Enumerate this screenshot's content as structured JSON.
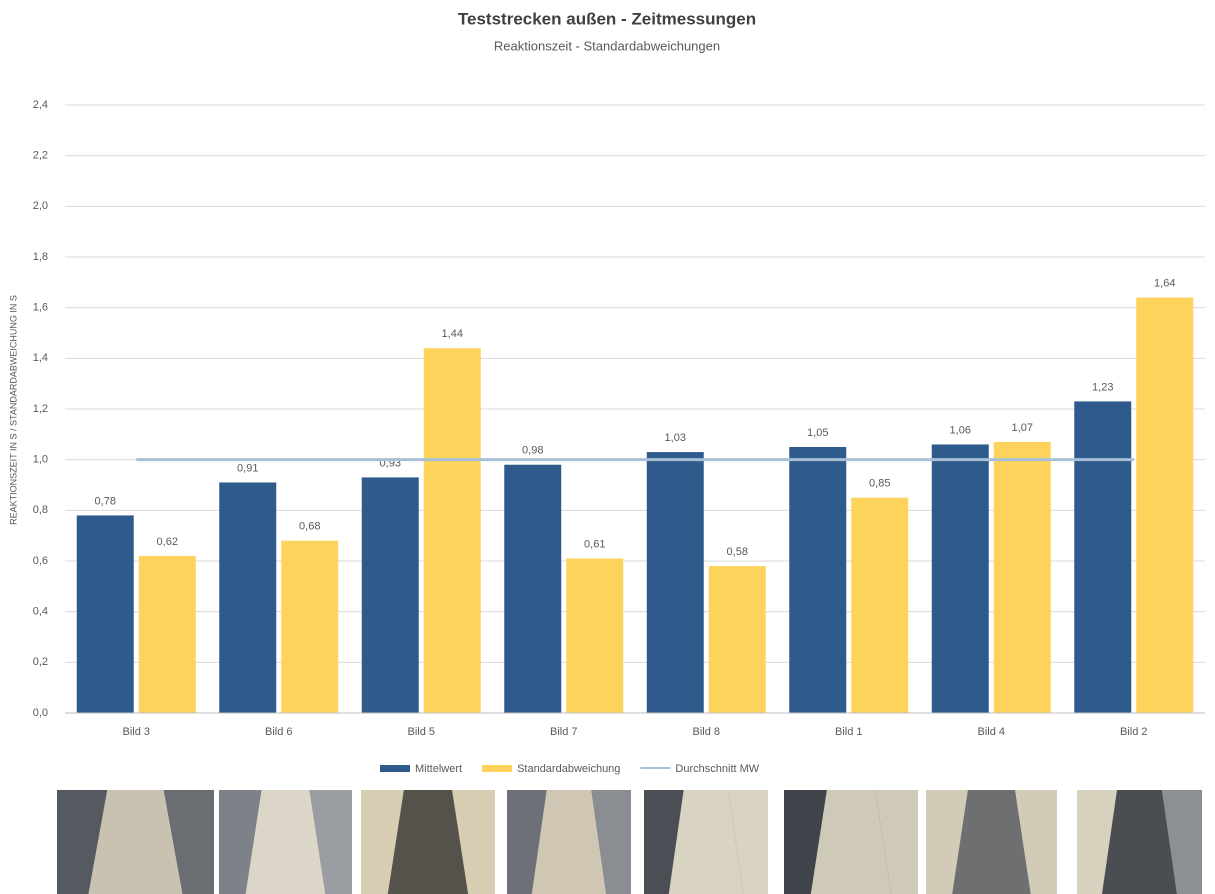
{
  "chart_data": {
    "type": "bar",
    "title": "Teststrecken außen - Zeitmessungen",
    "subtitle": "Reaktionszeit - Standardabweichungen",
    "y_label": "REAKTIONSZEIT IN S / STANDARDABWEICHUNG IN S",
    "categories": [
      "Bild 3",
      "Bild 6",
      "Bild 5",
      "Bild 7",
      "Bild 8",
      "Bild 1",
      "Bild 4",
      "Bild 2"
    ],
    "series": [
      {
        "name": "Mittelwert",
        "color": "#2e5b8c",
        "values": [
          0.78,
          0.91,
          0.93,
          0.98,
          1.03,
          1.05,
          1.06,
          1.23
        ],
        "value_labels": [
          "0,78",
          "0,91",
          "0,93",
          "0,98",
          "1,03",
          "1,05",
          "1,06",
          "1,23"
        ]
      },
      {
        "name": "Standardabweichung",
        "color": "#fdd35c",
        "values": [
          0.62,
          0.68,
          1.44,
          0.61,
          0.58,
          0.85,
          1.07,
          1.64
        ],
        "value_labels": [
          "0,62",
          "0,68",
          "1,44",
          "0,61",
          "0,58",
          "0,85",
          "1,07",
          "1,64"
        ]
      },
      {
        "name": "Durchschnitt MW",
        "type": "line",
        "color": "#a9bfd6",
        "values": [
          1.0,
          1.0,
          1.0,
          1.0,
          1.0,
          1.0,
          1.0,
          1.0
        ]
      }
    ],
    "ylim": [
      0,
      2.4
    ],
    "yticks": [
      {
        "value": 0,
        "label": "0,0"
      },
      {
        "value": 0.2,
        "label": "0,2"
      },
      {
        "value": 0.4,
        "label": "0,4"
      },
      {
        "value": 0.6,
        "label": "0,6"
      },
      {
        "value": 0.8,
        "label": "0,8"
      },
      {
        "value": 1.0,
        "label": "1,0"
      },
      {
        "value": 1.2,
        "label": "1,2"
      },
      {
        "value": 1.4,
        "label": "1,4"
      },
      {
        "value": 1.6,
        "label": "1,6"
      },
      {
        "value": 1.8,
        "label": "1,8"
      },
      {
        "value": 2.0,
        "label": "2,0"
      },
      {
        "value": 2.2,
        "label": "2,2"
      },
      {
        "value": 2.4,
        "label": "2,4"
      }
    ],
    "grid": true
  }
}
